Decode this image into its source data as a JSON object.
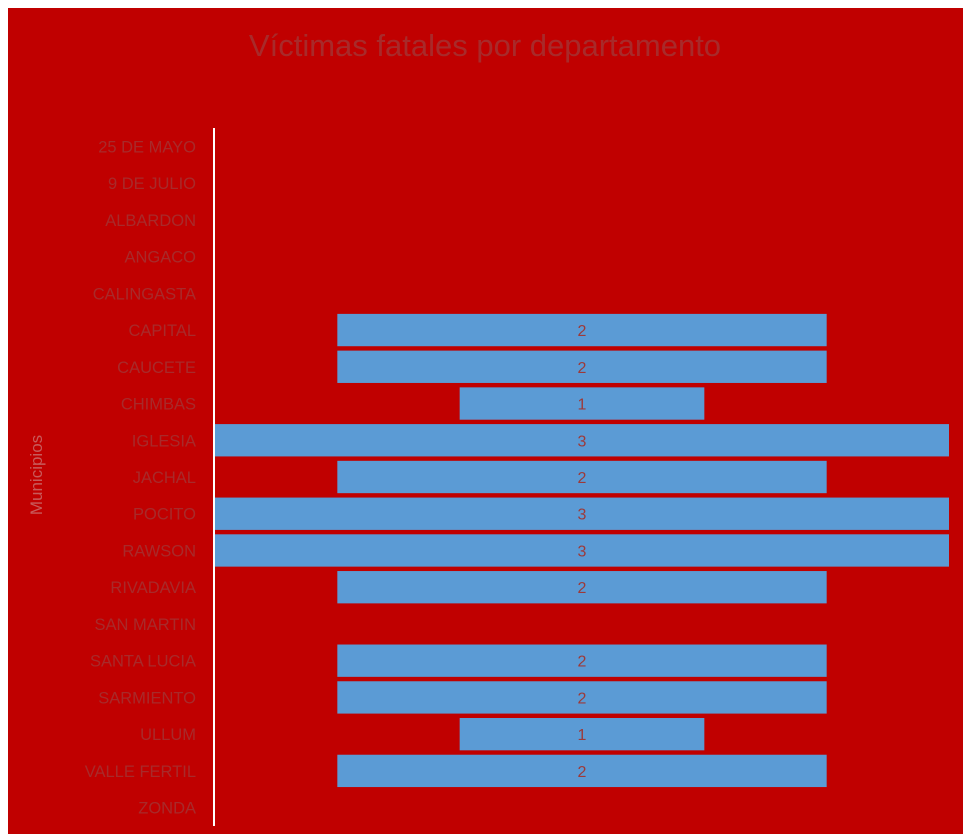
{
  "chart_data": {
    "type": "bar",
    "orientation": "horizontal",
    "title": "Víctimas fatales por departamento",
    "ylabel": "Municipios",
    "xlabel": "",
    "categories": [
      "25 DE MAYO",
      "9 DE JULIO",
      "ALBARDON",
      "ANGACO",
      "CALINGASTA",
      "CAPITAL",
      "CAUCETE",
      "CHIMBAS",
      "IGLESIA",
      "JACHAL",
      "POCITO",
      "RAWSON",
      "RIVADAVIA",
      "SAN MARTIN",
      "SANTA LUCIA",
      "SARMIENTO",
      "ULLUM",
      "VALLE FERTIL",
      "ZONDA"
    ],
    "values": [
      0,
      0,
      0,
      0,
      0,
      2,
      2,
      1,
      3,
      2,
      3,
      3,
      2,
      0,
      2,
      2,
      1,
      2,
      0
    ],
    "xlim": [
      0,
      3
    ],
    "bar_alignment": "centered",
    "grid": false,
    "legend": "none",
    "data_labels": true,
    "colors": {
      "background": "#c00000",
      "bar": "#5b9bd5",
      "text": "#a82a2a",
      "axis_line": "#ffffff"
    }
  }
}
